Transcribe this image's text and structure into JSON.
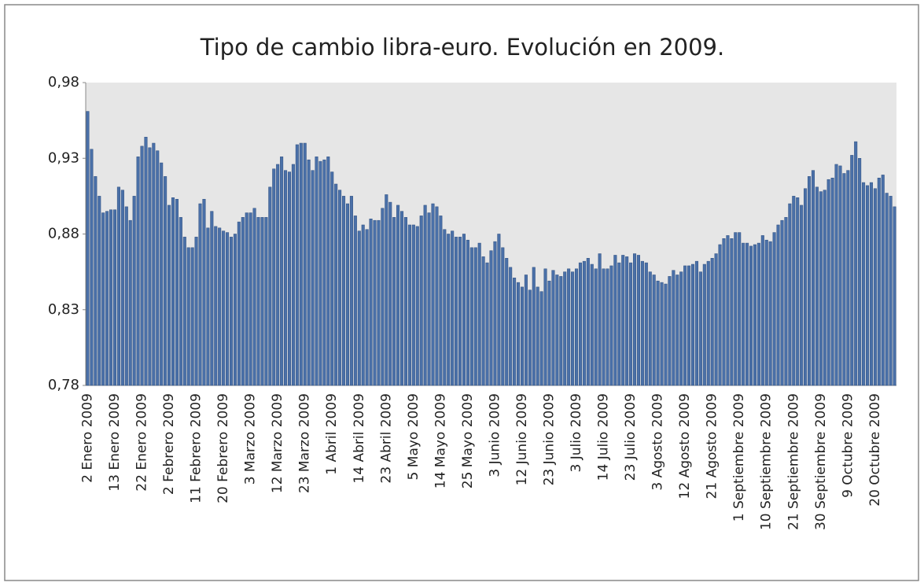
{
  "chart_data": {
    "type": "bar",
    "title": "Tipo de cambio libra-euro. Evolución en 2009.",
    "categories": [
      "2 Enero 2009",
      null,
      null,
      null,
      null,
      null,
      null,
      "13 Enero 2009",
      null,
      null,
      null,
      null,
      null,
      null,
      "22 Enero 2009",
      null,
      null,
      null,
      null,
      null,
      null,
      "2 Febrero 2009",
      null,
      null,
      null,
      null,
      null,
      null,
      "11 Febrero 2009",
      null,
      null,
      null,
      null,
      null,
      null,
      "20 Febrero 2009",
      null,
      null,
      null,
      null,
      null,
      null,
      "3 Marzo 2009",
      null,
      null,
      null,
      null,
      null,
      null,
      "12 Marzo 2009",
      null,
      null,
      null,
      null,
      null,
      null,
      "23 Marzo 2009",
      null,
      null,
      null,
      null,
      null,
      null,
      "1 Abril 2009",
      null,
      null,
      null,
      null,
      null,
      null,
      "14 Abril 2009",
      null,
      null,
      null,
      null,
      null,
      null,
      "23 Abril 2009",
      null,
      null,
      null,
      null,
      null,
      null,
      "5 Mayo 2009",
      null,
      null,
      null,
      null,
      null,
      null,
      "14 Mayo 2009",
      null,
      null,
      null,
      null,
      null,
      null,
      "25 Mayo 2009",
      null,
      null,
      null,
      null,
      null,
      null,
      "3 Junio 2009",
      null,
      null,
      null,
      null,
      null,
      null,
      "12 Junio 2009",
      null,
      null,
      null,
      null,
      null,
      null,
      "23 Junio 2009",
      null,
      null,
      null,
      null,
      null,
      null,
      "3 Julio 2009",
      null,
      null,
      null,
      null,
      null,
      null,
      "14 Julio 2009",
      null,
      null,
      null,
      null,
      null,
      null,
      "23 Julio 2009",
      null,
      null,
      null,
      null,
      null,
      null,
      "3 Agosto 2009",
      null,
      null,
      null,
      null,
      null,
      null,
      "12 Agosto 2009",
      null,
      null,
      null,
      null,
      null,
      null,
      "21 Agosto 2009",
      null,
      null,
      null,
      null,
      null,
      null,
      "1 Septiembre 2009",
      null,
      null,
      null,
      null,
      null,
      null,
      "10 Septiembre 2009",
      null,
      null,
      null,
      null,
      null,
      null,
      "21 Septiembre 2009",
      null,
      null,
      null,
      null,
      null,
      null,
      "30 Septiembre 2009",
      null,
      null,
      null,
      null,
      null,
      null,
      "9 Octubre 2009",
      null,
      null,
      null,
      null,
      null,
      null,
      "20 Octubre 2009",
      null,
      null,
      null,
      null,
      null
    ],
    "values": [
      0.961,
      0.936,
      0.918,
      0.905,
      0.894,
      0.895,
      0.896,
      0.896,
      0.911,
      0.909,
      0.898,
      0.889,
      0.905,
      0.931,
      0.938,
      0.944,
      0.937,
      0.94,
      0.935,
      0.927,
      0.918,
      0.899,
      0.904,
      0.903,
      0.891,
      0.878,
      0.871,
      0.871,
      0.878,
      0.9,
      0.903,
      0.884,
      0.895,
      0.885,
      0.884,
      0.882,
      0.881,
      0.878,
      0.88,
      0.888,
      0.891,
      0.894,
      0.894,
      0.897,
      0.891,
      0.891,
      0.891,
      0.911,
      0.923,
      0.926,
      0.931,
      0.922,
      0.921,
      0.926,
      0.939,
      0.94,
      0.94,
      0.929,
      0.922,
      0.931,
      0.928,
      0.929,
      0.931,
      0.921,
      0.913,
      0.909,
      0.905,
      0.9,
      0.905,
      0.892,
      0.882,
      0.886,
      0.883,
      0.89,
      0.889,
      0.889,
      0.897,
      0.906,
      0.901,
      0.891,
      0.899,
      0.895,
      0.891,
      0.886,
      0.886,
      0.885,
      0.892,
      0.899,
      0.894,
      0.9,
      0.898,
      0.892,
      0.883,
      0.88,
      0.882,
      0.878,
      0.878,
      0.88,
      0.876,
      0.871,
      0.871,
      0.874,
      0.865,
      0.861,
      0.869,
      0.875,
      0.88,
      0.871,
      0.864,
      0.858,
      0.851,
      0.848,
      0.845,
      0.853,
      0.843,
      0.858,
      0.845,
      0.842,
      0.857,
      0.849,
      0.856,
      0.853,
      0.852,
      0.855,
      0.857,
      0.855,
      0.857,
      0.861,
      0.862,
      0.864,
      0.86,
      0.857,
      0.867,
      0.857,
      0.857,
      0.859,
      0.866,
      0.861,
      0.866,
      0.865,
      0.861,
      0.867,
      0.866,
      0.862,
      0.861,
      0.855,
      0.853,
      0.849,
      0.848,
      0.847,
      0.852,
      0.856,
      0.853,
      0.855,
      0.859,
      0.859,
      0.86,
      0.862,
      0.855,
      0.86,
      0.862,
      0.864,
      0.867,
      0.873,
      0.877,
      0.879,
      0.877,
      0.881,
      0.881,
      0.874,
      0.874,
      0.872,
      0.873,
      0.874,
      0.879,
      0.876,
      0.875,
      0.881,
      0.886,
      0.889,
      0.891,
      0.9,
      0.905,
      0.904,
      0.899,
      0.91,
      0.918,
      0.922,
      0.911,
      0.908,
      0.909,
      0.916,
      0.917,
      0.926,
      0.925,
      0.92,
      0.922,
      0.932,
      0.941,
      0.93,
      0.914,
      0.912,
      0.914,
      0.91,
      0.917,
      0.919,
      0.907,
      0.905,
      0.898
    ],
    "color": "#4a70a8",
    "ylim": [
      0.78,
      0.98
    ],
    "yticks": [
      {
        "value": 0.78,
        "label": "0,78"
      },
      {
        "value": 0.83,
        "label": "0,83"
      },
      {
        "value": 0.88,
        "label": "0,88"
      },
      {
        "value": 0.93,
        "label": "0,93"
      },
      {
        "value": 0.98,
        "label": "0,98"
      }
    ],
    "grid": false
  }
}
